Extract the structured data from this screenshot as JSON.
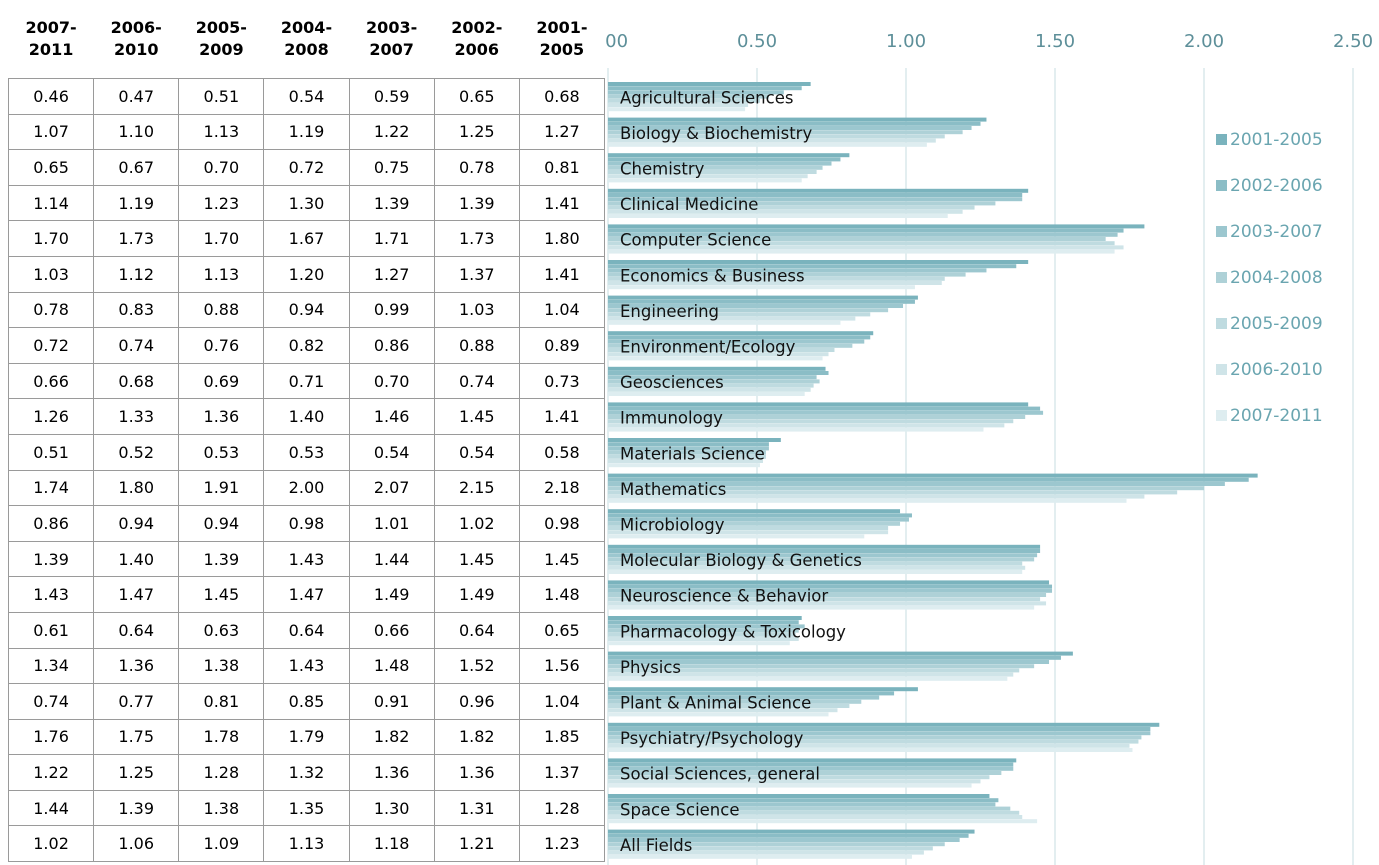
{
  "chart_data": {
    "type": "bar",
    "orientation": "horizontal",
    "categories": [
      "Agricultural Sciences",
      "Biology & Biochemistry",
      "Chemistry",
      "Clinical Medicine",
      "Computer Science",
      "Economics & Business",
      "Engineering",
      "Environment/Ecology",
      "Geosciences",
      "Immunology",
      "Materials Science",
      "Mathematics",
      "Microbiology",
      "Molecular Biology & Genetics",
      "Neuroscience & Behavior",
      "Pharmacology & Toxicology",
      "Physics",
      "Plant & Animal Science",
      "Psychiatry/Psychology",
      "Social Sciences, general",
      "Space Science",
      "All Fields"
    ],
    "series": [
      {
        "name": "2001-2005",
        "color": "#7ab3bd",
        "values": [
          0.68,
          1.27,
          0.81,
          1.41,
          1.8,
          1.41,
          1.04,
          0.89,
          0.73,
          1.41,
          0.58,
          2.18,
          0.98,
          1.45,
          1.48,
          0.65,
          1.56,
          1.04,
          1.85,
          1.37,
          1.28,
          1.23
        ],
        "value_labels": [
          "0.68",
          "1.27",
          "0.81",
          "1.41",
          "1.80",
          "1.41",
          "1.04",
          "0.89",
          "0.73",
          "1.41",
          "0.58",
          "2.18",
          "0.98",
          "1.45",
          "1.48",
          "0.65",
          "1.56",
          "1.04",
          "1.85",
          "1.37",
          "1.28",
          "1.23"
        ]
      },
      {
        "name": "2002-2006",
        "color": "#8bbdc6",
        "values": [
          0.65,
          1.25,
          0.78,
          1.39,
          1.73,
          1.37,
          1.03,
          0.88,
          0.74,
          1.45,
          0.54,
          2.15,
          1.02,
          1.45,
          1.49,
          0.64,
          1.52,
          0.96,
          1.82,
          1.36,
          1.31,
          1.21
        ],
        "value_labels": [
          "0.65",
          "1.25",
          "0.78",
          "1.39",
          "1.73",
          "1.37",
          "1.03",
          "0.88",
          "0.74",
          "1.45",
          "0.54",
          "2.15",
          "1.02",
          "1.45",
          "1.49",
          "0.64",
          "1.52",
          "0.96",
          "1.82",
          "1.36",
          "1.31",
          "1.21"
        ]
      },
      {
        "name": "2003-2007",
        "color": "#9cc7cf",
        "values": [
          0.59,
          1.22,
          0.75,
          1.39,
          1.71,
          1.27,
          0.99,
          0.86,
          0.7,
          1.46,
          0.54,
          2.07,
          1.01,
          1.44,
          1.49,
          0.66,
          1.48,
          0.91,
          1.82,
          1.36,
          1.3,
          1.18
        ],
        "value_labels": [
          "0.59",
          "1.22",
          "0.75",
          "1.39",
          "1.71",
          "1.27",
          "0.99",
          "0.86",
          "0.70",
          "1.46",
          "0.54",
          "2.07",
          "1.01",
          "1.44",
          "1.49",
          "0.66",
          "1.48",
          "0.91",
          "1.82",
          "1.36",
          "1.30",
          "1.18"
        ]
      },
      {
        "name": "2004-2008",
        "color": "#aed1d7",
        "values": [
          0.54,
          1.19,
          0.72,
          1.3,
          1.67,
          1.2,
          0.94,
          0.82,
          0.71,
          1.4,
          0.53,
          2.0,
          0.98,
          1.43,
          1.47,
          0.64,
          1.43,
          0.85,
          1.79,
          1.32,
          1.35,
          1.13
        ],
        "value_labels": [
          "0.54",
          "1.19",
          "0.72",
          "1.30",
          "1.67",
          "1.20",
          "0.94",
          "0.82",
          "0.71",
          "1.40",
          "0.53",
          "2.00",
          "0.98",
          "1.43",
          "1.47",
          "0.64",
          "1.43",
          "0.85",
          "1.79",
          "1.32",
          "1.35",
          "1.13"
        ]
      },
      {
        "name": "2005-2009",
        "color": "#bfdbe0",
        "values": [
          0.51,
          1.13,
          0.7,
          1.23,
          1.7,
          1.13,
          0.88,
          0.76,
          0.69,
          1.36,
          0.53,
          1.91,
          0.94,
          1.39,
          1.45,
          0.63,
          1.38,
          0.81,
          1.78,
          1.28,
          1.38,
          1.09
        ],
        "value_labels": [
          "0.51",
          "1.13",
          "0.70",
          "1.23",
          "1.70",
          "1.13",
          "0.88",
          "0.76",
          "0.69",
          "1.36",
          "0.53",
          "1.91",
          "0.94",
          "1.39",
          "1.45",
          "0.63",
          "1.38",
          "0.81",
          "1.78",
          "1.28",
          "1.38",
          "1.09"
        ]
      },
      {
        "name": "2006-2010",
        "color": "#cfe4e8",
        "values": [
          0.47,
          1.1,
          0.67,
          1.19,
          1.73,
          1.12,
          0.83,
          0.74,
          0.68,
          1.33,
          0.52,
          1.8,
          0.94,
          1.4,
          1.47,
          0.64,
          1.36,
          0.77,
          1.75,
          1.25,
          1.39,
          1.06
        ],
        "value_labels": [
          "0.47",
          "1.10",
          "0.67",
          "1.19",
          "1.73",
          "1.12",
          "0.83",
          "0.74",
          "0.68",
          "1.33",
          "0.52",
          "1.80",
          "0.94",
          "1.40",
          "1.47",
          "0.64",
          "1.36",
          "0.77",
          "1.75",
          "1.25",
          "1.39",
          "1.06"
        ]
      },
      {
        "name": "2007-2011",
        "color": "#deedf0",
        "values": [
          0.46,
          1.07,
          0.65,
          1.14,
          1.7,
          1.03,
          0.78,
          0.72,
          0.66,
          1.26,
          0.51,
          1.74,
          0.86,
          1.39,
          1.43,
          0.61,
          1.34,
          0.74,
          1.76,
          1.22,
          1.44,
          1.02
        ],
        "value_labels": [
          "0.46",
          "1.07",
          "0.65",
          "1.14",
          "1.70",
          "1.03",
          "0.78",
          "0.72",
          "0.66",
          "1.26",
          "0.51",
          "1.74",
          "0.86",
          "1.39",
          "1.43",
          "0.61",
          "1.34",
          "0.74",
          "1.76",
          "1.22",
          "1.44",
          "1.02"
        ]
      }
    ],
    "xlim": [
      0,
      2.5
    ],
    "xticks": [
      {
        "value": 0,
        "label": "0.00"
      },
      {
        "value": 0.5,
        "label": "0.50"
      },
      {
        "value": 1,
        "label": "1.00"
      },
      {
        "value": 1.5,
        "label": "1.50"
      },
      {
        "value": 2,
        "label": "2.00"
      },
      {
        "value": 2.5,
        "label": "2.50"
      }
    ],
    "grid": true,
    "legend": "right"
  }
}
